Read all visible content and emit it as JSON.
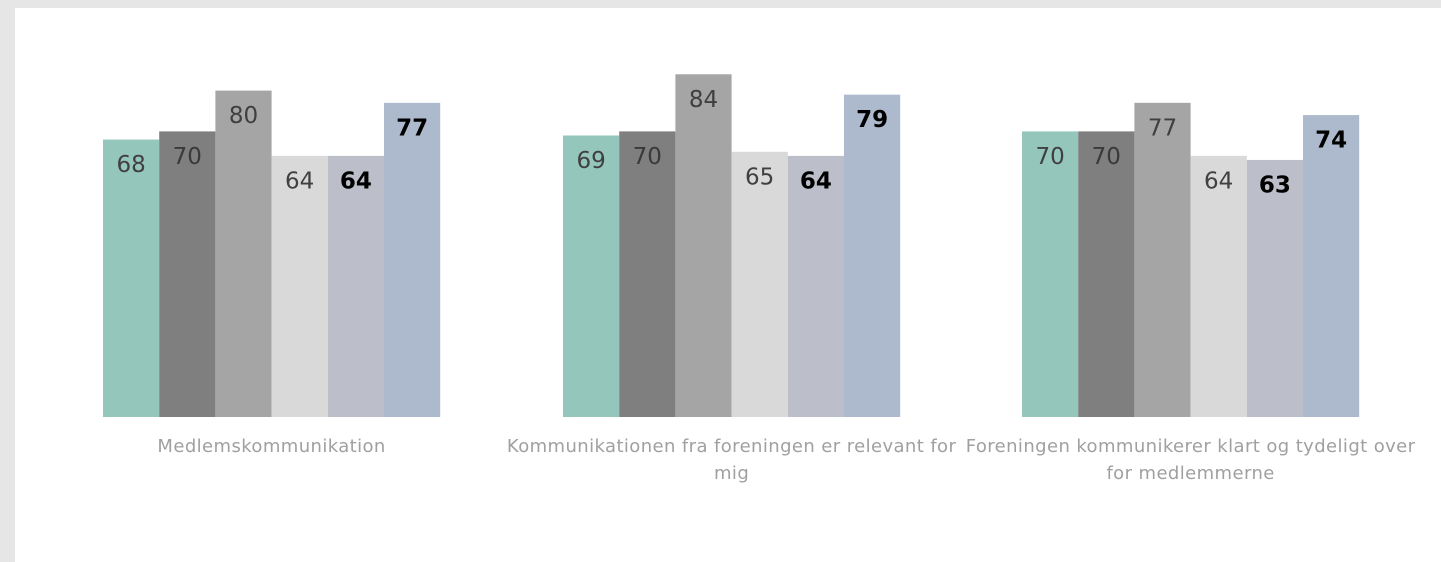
{
  "chart_data": {
    "type": "bar",
    "categories": [
      "Medlemskommunikation",
      "Kommunikationen fra foreningen er relevant for mig",
      "Foreningen kommunikerer klart og tydeligt over for medlemmerne"
    ],
    "series": [
      {
        "color": "#95c6bb",
        "label_color": "#404040",
        "values": [
          68,
          69,
          70
        ]
      },
      {
        "color": "#7f7f7f",
        "label_color": "#3a3a3a",
        "values": [
          70,
          70,
          70
        ]
      },
      {
        "color": "#a5a5a5",
        "label_color": "#3f3f3f",
        "values": [
          80,
          84,
          77
        ]
      },
      {
        "color": "#d9d9d9",
        "label_color": "#404040",
        "values": [
          64,
          65,
          64
        ]
      },
      {
        "color": "#bcbfc9",
        "label_color": "#000000",
        "values": [
          64,
          64,
          63
        ]
      },
      {
        "color": "#adb9cd",
        "label_color": "#000000",
        "values": [
          77,
          79,
          74
        ]
      }
    ]
  }
}
